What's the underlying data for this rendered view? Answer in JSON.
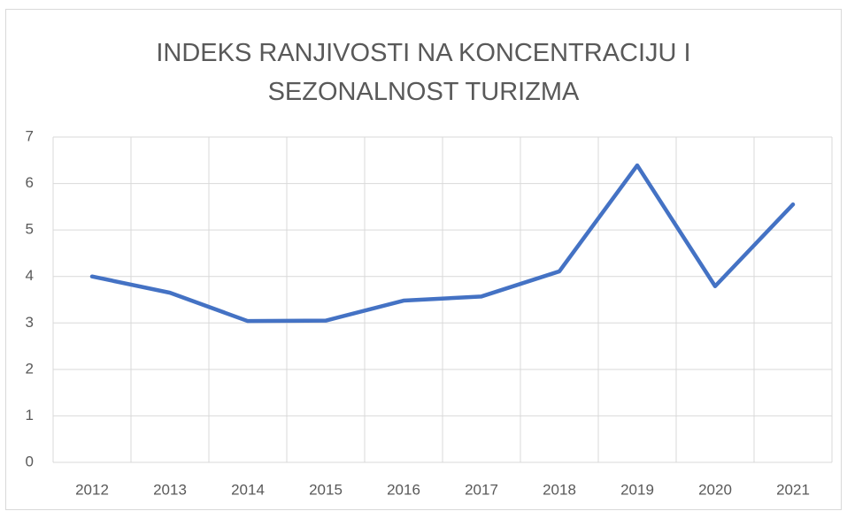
{
  "chart_data": {
    "type": "line",
    "title": "INDEKS RANJIVOSTI NA KONCENTRACIJU I SEZONALNOST TURIZMA",
    "categories": [
      "2012",
      "2013",
      "2014",
      "2015",
      "2016",
      "2017",
      "2018",
      "2019",
      "2020",
      "2021"
    ],
    "values": [
      4.0,
      3.65,
      3.04,
      3.05,
      3.48,
      3.57,
      4.11,
      6.39,
      3.79,
      5.55
    ],
    "color": "#4472c4",
    "ylim": [
      0,
      7
    ],
    "yticks": [
      0,
      1,
      2,
      3,
      4,
      5,
      6,
      7
    ],
    "grid": true
  }
}
